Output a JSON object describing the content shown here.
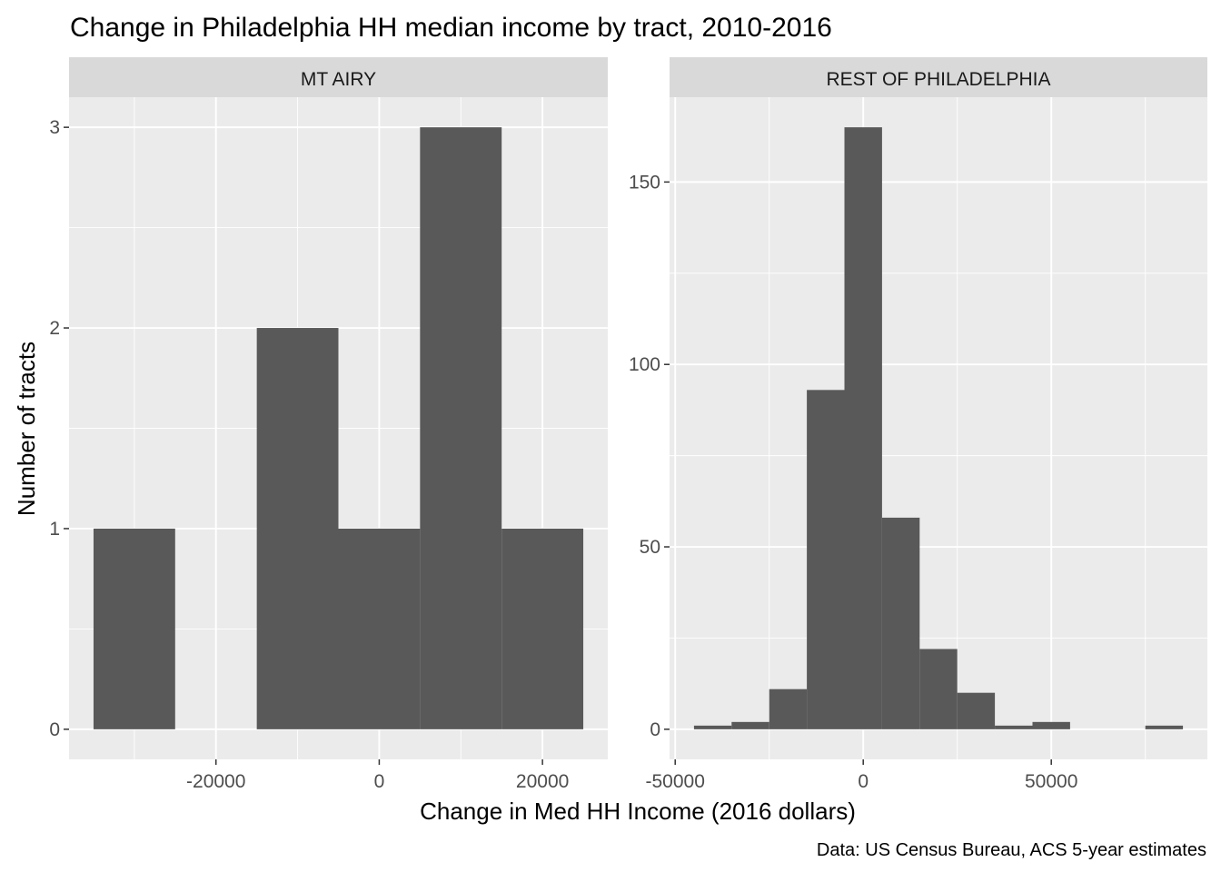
{
  "title": "Change in Philadelphia HH median income by tract, 2010-2016",
  "xlabel": "Change in Med HH Income (2016 dollars)",
  "ylabel": "Number of tracts",
  "caption": "Data: US Census Bureau, ACS 5-year estimates",
  "colors": {
    "bar": "#595959",
    "panel_bg": "#ebebeb",
    "strip_bg": "#d9d9d9",
    "grid": "#ffffff",
    "text": "#000000",
    "tick_text": "#4d4d4d"
  },
  "chart_data": [
    {
      "type": "bar",
      "facet": "MT AIRY",
      "bin_width": 10000,
      "bins": [
        {
          "x0": -35000,
          "x1": -25000,
          "count": 1
        },
        {
          "x0": -25000,
          "x1": -15000,
          "count": 0
        },
        {
          "x0": -15000,
          "x1": -5000,
          "count": 2
        },
        {
          "x0": -5000,
          "x1": 5000,
          "count": 1
        },
        {
          "x0": 5000,
          "x1": 15000,
          "count": 3
        },
        {
          "x0": 15000,
          "x1": 25000,
          "count": 1
        }
      ],
      "x_ticks": [
        -20000,
        0,
        20000
      ],
      "y_ticks": [
        0,
        1,
        2,
        3
      ],
      "xlim": [
        -38000,
        28000
      ],
      "ylim": [
        -0.15,
        3.15
      ],
      "grid": true
    },
    {
      "type": "bar",
      "facet": "REST OF PHILADELPHIA",
      "bin_width": 10000,
      "bins": [
        {
          "x0": -45000,
          "x1": -35000,
          "count": 1
        },
        {
          "x0": -35000,
          "x1": -25000,
          "count": 2
        },
        {
          "x0": -25000,
          "x1": -15000,
          "count": 11
        },
        {
          "x0": -15000,
          "x1": -5000,
          "count": 93
        },
        {
          "x0": -5000,
          "x1": 5000,
          "count": 165
        },
        {
          "x0": 5000,
          "x1": 15000,
          "count": 58
        },
        {
          "x0": 15000,
          "x1": 25000,
          "count": 22
        },
        {
          "x0": 25000,
          "x1": 35000,
          "count": 10
        },
        {
          "x0": 35000,
          "x1": 45000,
          "count": 1
        },
        {
          "x0": 45000,
          "x1": 55000,
          "count": 2
        },
        {
          "x0": 55000,
          "x1": 65000,
          "count": 0
        },
        {
          "x0": 65000,
          "x1": 75000,
          "count": 0
        },
        {
          "x0": 75000,
          "x1": 85000,
          "count": 1
        }
      ],
      "x_ticks": [
        -50000,
        0,
        50000
      ],
      "y_ticks": [
        0,
        50,
        100,
        150
      ],
      "xlim": [
        -51500,
        91500
      ],
      "ylim": [
        -8.25,
        173.25
      ],
      "grid": true
    }
  ]
}
